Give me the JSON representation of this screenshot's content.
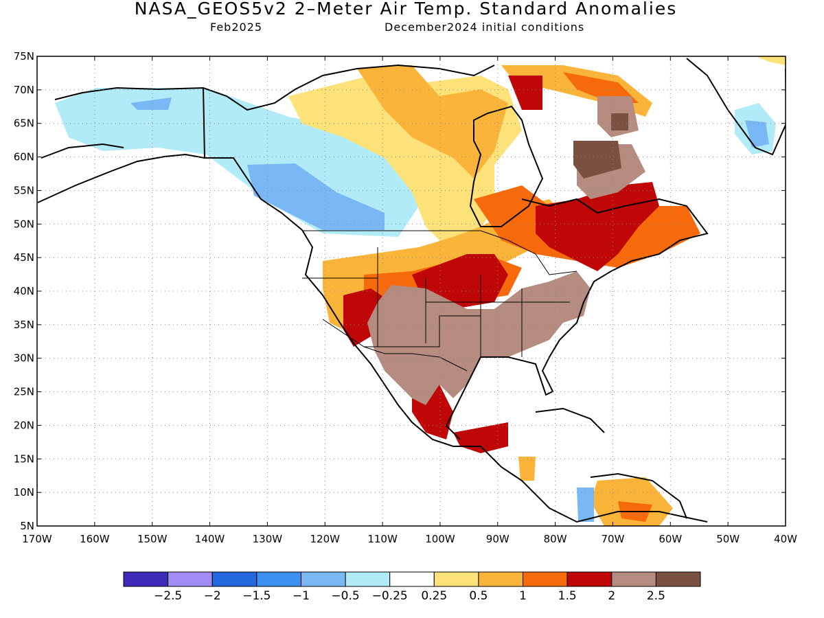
{
  "header": {
    "title": "NASA_GEOS5v2 2–Meter Air Temp. Standard Anomalies",
    "valid_month": "Feb2025",
    "init_conditions": "December2024 initial conditions"
  },
  "map": {
    "lat_labels": [
      "75N",
      "70N",
      "65N",
      "60N",
      "55N",
      "50N",
      "45N",
      "40N",
      "35N",
      "30N",
      "25N",
      "20N",
      "15N",
      "10N",
      "5N"
    ],
    "lon_labels": [
      "170W",
      "160W",
      "150W",
      "140W",
      "130W",
      "120W",
      "110W",
      "100W",
      "90W",
      "80W",
      "70W",
      "60W",
      "50W",
      "40W"
    ]
  },
  "colorbar": {
    "colors": [
      "#3d2ab8",
      "#a18cf5",
      "#2468e0",
      "#3e90f0",
      "#7ab8f5",
      "#b1ebf8",
      "#ffffff",
      "#fde27a",
      "#fbb43a",
      "#f66a0c",
      "#c00707",
      "#b68c80",
      "#7a5040"
    ],
    "labels": [
      "−2.5",
      "−2",
      "−1.5",
      "−1",
      "−0.5",
      "−0.25",
      "0.25",
      "0.5",
      "1",
      "1.5",
      "2",
      "2.5"
    ]
  }
}
